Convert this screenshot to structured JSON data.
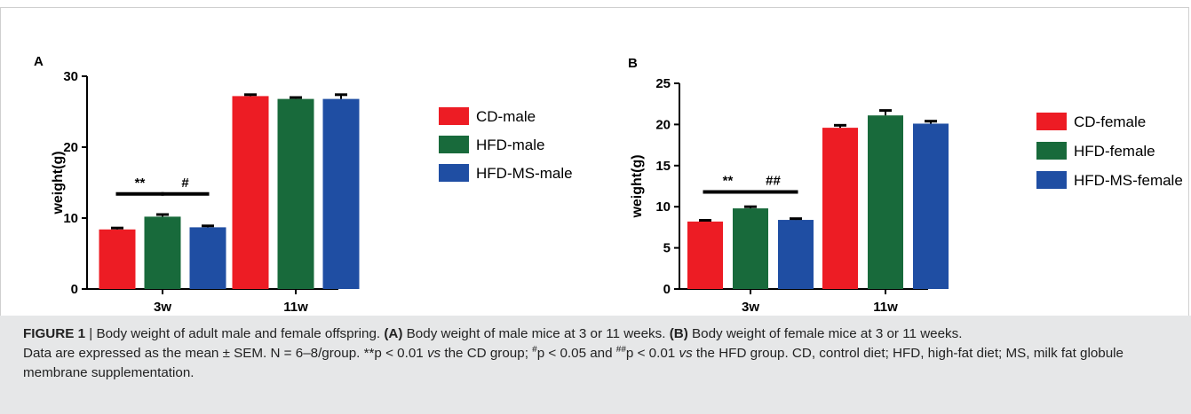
{
  "chart_data": [
    {
      "panel": "A",
      "type": "bar",
      "ylabel": "weight(g)",
      "ylim": [
        0,
        30
      ],
      "yticks": [
        "0",
        "10",
        "20",
        "30"
      ],
      "categories": [
        "3w",
        "11w"
      ],
      "series": [
        {
          "name": "CD-male",
          "color": "#ed1c24",
          "values": [
            8.4,
            27.2
          ],
          "errors": [
            0.2,
            0.2
          ]
        },
        {
          "name": "HFD-male",
          "color": "#186a3b",
          "values": [
            10.2,
            26.8
          ],
          "errors": [
            0.3,
            0.2
          ]
        },
        {
          "name": "HFD-MS-male",
          "color": "#1f4ea3",
          "values": [
            8.7,
            26.8
          ],
          "errors": [
            0.2,
            0.6
          ]
        }
      ],
      "annotations": [
        {
          "text": "**",
          "category": 0,
          "between": [
            0,
            1
          ],
          "y": 13.4
        },
        {
          "text": "#",
          "category": 0,
          "between": [
            1,
            2
          ],
          "y": 13.4
        }
      ],
      "legend_position": "right"
    },
    {
      "panel": "B",
      "type": "bar",
      "ylabel": "weight(g)",
      "ylim": [
        0,
        25
      ],
      "yticks": [
        "0",
        "5",
        "10",
        "15",
        "20",
        "25"
      ],
      "categories": [
        "3w",
        "11w"
      ],
      "series": [
        {
          "name": "CD-female",
          "color": "#ed1c24",
          "values": [
            8.2,
            19.6
          ],
          "errors": [
            0.15,
            0.3
          ]
        },
        {
          "name": "HFD-female",
          "color": "#186a3b",
          "values": [
            9.8,
            21.1
          ],
          "errors": [
            0.2,
            0.6
          ]
        },
        {
          "name": "HFD-MS-female",
          "color": "#1f4ea3",
          "values": [
            8.4,
            20.1
          ],
          "errors": [
            0.15,
            0.3
          ]
        }
      ],
      "annotations": [
        {
          "text": "**",
          "category": 0,
          "between": [
            0,
            1
          ],
          "y": 11.8
        },
        {
          "text": "##",
          "category": 0,
          "between": [
            1,
            2
          ],
          "y": 11.8
        }
      ],
      "legend_position": "right"
    }
  ],
  "caption": {
    "label": "FIGURE 1",
    "separator": " | ",
    "title": "Body weight of adult male and female offspring. ",
    "a_label": "(A)",
    "a_text": " Body weight of male mice at 3 or 11 weeks. ",
    "b_label": "(B)",
    "b_text": " Body weight of female mice at 3 or 11 weeks.",
    "line2_start": "Data are expressed as the mean ± SEM. N = 6–8/group. **p < 0.01 ",
    "vs1": "vs",
    "line2_mid": " the CD group; ",
    "sup1": "#",
    "line2_mid2": "p < 0.05 and ",
    "sup2": "##",
    "line2_mid3": "p < 0.01 ",
    "vs2": "vs",
    "line2_end": " the HFD group. CD, control diet; HFD, high-fat diet; MS, milk fat globule membrane supplementation."
  }
}
